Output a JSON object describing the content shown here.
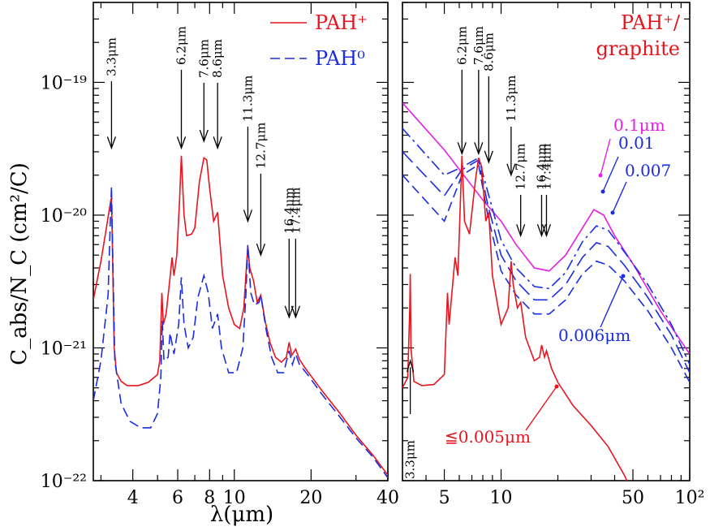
{
  "chart_data": [
    {
      "type": "line",
      "panel": "left",
      "xlabel": "λ(μm)",
      "ylabel": "C_abs/N_C (cm²/C)",
      "xscale": "log",
      "yscale": "log",
      "xlim": [
        2.8,
        40
      ],
      "ylim": [
        1e-22,
        4e-19
      ],
      "xtick_values": [
        4,
        6,
        8,
        10,
        20,
        40
      ],
      "xtick_labels": [
        "4",
        "6",
        "8",
        "10",
        "20",
        "40"
      ],
      "ytick_values": [
        1e-22,
        1e-21,
        1e-20,
        1e-19
      ],
      "ytick_labels": [
        "10⁻²²",
        "10⁻²¹",
        "10⁻²⁰",
        "10⁻¹⁹"
      ],
      "legend_position": "top-right",
      "legend": [
        {
          "label": "PAH⁺",
          "color": "#e8141e",
          "dash": "solid"
        },
        {
          "label": "PAH⁰",
          "color": "#1a2de0",
          "dash": "dashed"
        }
      ],
      "features": [
        {
          "label": "3.3μm",
          "x": 3.3,
          "arrow_tip_y": 3.2e-20
        },
        {
          "label": "6.2μm",
          "x": 6.2,
          "arrow_tip_y": 3.2e-20
        },
        {
          "label": "7.6μm",
          "x": 7.6,
          "arrow_tip_y": 3.6e-20
        },
        {
          "label": "8.6μm",
          "x": 8.6,
          "arrow_tip_y": 3.2e-20
        },
        {
          "label": "11.3μm",
          "x": 11.3,
          "arrow_tip_y": 9e-21
        },
        {
          "label": "12.7μm",
          "x": 12.7,
          "arrow_tip_y": 5e-21
        },
        {
          "label": "16.4μm",
          "x": 16.4,
          "arrow_tip_y": 1.7e-21
        },
        {
          "label": "17.4μm",
          "x": 17.4,
          "arrow_tip_y": 1.7e-21
        }
      ],
      "series": [
        {
          "name": "PAH⁺",
          "color": "#e8141e",
          "dash": "solid",
          "points": [
            [
              2.8,
              2.3e-21
            ],
            [
              3.0,
              4.5e-21
            ],
            [
              3.15,
              8e-21
            ],
            [
              3.28,
              1.3e-20
            ],
            [
              3.3,
              1.35e-20
            ],
            [
              3.33,
              5e-21
            ],
            [
              3.38,
              1e-21
            ],
            [
              3.45,
              6.5e-22
            ],
            [
              3.6,
              5.6e-22
            ],
            [
              3.8,
              5.2e-22
            ],
            [
              4.2,
              5.2e-22
            ],
            [
              4.6,
              5.5e-22
            ],
            [
              5.0,
              6.3e-22
            ],
            [
              5.1,
              8e-22
            ],
            [
              5.2,
              2.6e-21
            ],
            [
              5.27,
              1.5e-21
            ],
            [
              5.4,
              1.8e-21
            ],
            [
              5.6,
              3.4e-21
            ],
            [
              5.7,
              4.8e-21
            ],
            [
              5.8,
              3.5e-21
            ],
            [
              5.95,
              5e-21
            ],
            [
              6.1,
              1.3e-20
            ],
            [
              6.2,
              2.8e-20
            ],
            [
              6.35,
              1e-20
            ],
            [
              6.5,
              7e-21
            ],
            [
              6.8,
              7.2e-21
            ],
            [
              7.0,
              8e-21
            ],
            [
              7.3,
              1.8e-20
            ],
            [
              7.6,
              2.7e-20
            ],
            [
              7.8,
              2.6e-20
            ],
            [
              8.0,
              1.6e-20
            ],
            [
              8.3,
              9e-21
            ],
            [
              8.6,
              1.05e-20
            ],
            [
              8.8,
              6e-21
            ],
            [
              9.0,
              3.5e-21
            ],
            [
              9.5,
              2e-21
            ],
            [
              10.0,
              1.5e-21
            ],
            [
              10.5,
              1.4e-21
            ],
            [
              10.9,
              2e-21
            ],
            [
              11.1,
              3.5e-21
            ],
            [
              11.3,
              5.8e-21
            ],
            [
              11.5,
              4e-21
            ],
            [
              11.9,
              3.2e-21
            ],
            [
              12.3,
              2.2e-21
            ],
            [
              12.7,
              2.5e-21
            ],
            [
              13.2,
              1.6e-21
            ],
            [
              13.8,
              1.1e-21
            ],
            [
              14.5,
              8.5e-22
            ],
            [
              15.3,
              7.8e-22
            ],
            [
              16.0,
              8.5e-22
            ],
            [
              16.4,
              1.1e-21
            ],
            [
              16.8,
              8.8e-22
            ],
            [
              17.4,
              9.8e-22
            ],
            [
              18.0,
              8.2e-22
            ],
            [
              19.0,
              7e-22
            ],
            [
              22,
              4.8e-22
            ],
            [
              26,
              3.2e-22
            ],
            [
              30,
              2.2e-22
            ],
            [
              35,
              1.55e-22
            ],
            [
              40,
              1.1e-22
            ]
          ]
        },
        {
          "name": "PAH⁰",
          "color": "#1a2de0",
          "dash": "dashed",
          "points": [
            [
              2.8,
              4e-22
            ],
            [
              3.0,
              8e-22
            ],
            [
              3.2,
              2.5e-21
            ],
            [
              3.27,
              1e-20
            ],
            [
              3.3,
              1.65e-20
            ],
            [
              3.33,
              6e-21
            ],
            [
              3.4,
              8e-22
            ],
            [
              3.6,
              3.8e-22
            ],
            [
              3.9,
              2.8e-22
            ],
            [
              4.3,
              2.5e-22
            ],
            [
              4.7,
              2.5e-22
            ],
            [
              5.0,
              3.2e-22
            ],
            [
              5.15,
              6e-22
            ],
            [
              5.22,
              1.6e-21
            ],
            [
              5.3,
              8e-22
            ],
            [
              5.5,
              8.5e-22
            ],
            [
              5.6,
              1.3e-21
            ],
            [
              5.8,
              9e-22
            ],
            [
              6.05,
              1.5e-21
            ],
            [
              6.2,
              3.4e-21
            ],
            [
              6.35,
              1.5e-21
            ],
            [
              6.6,
              1e-21
            ],
            [
              6.9,
              1.2e-21
            ],
            [
              7.2,
              2.4e-21
            ],
            [
              7.6,
              3.5e-21
            ],
            [
              7.9,
              2.6e-21
            ],
            [
              8.2,
              1.4e-21
            ],
            [
              8.6,
              1.8e-21
            ],
            [
              8.9,
              1e-21
            ],
            [
              9.5,
              6.5e-22
            ],
            [
              10.2,
              6.5e-22
            ],
            [
              10.8,
              1e-21
            ],
            [
              11.1,
              2.5e-21
            ],
            [
              11.3,
              6e-21
            ],
            [
              11.6,
              2.6e-21
            ],
            [
              12.0,
              2.1e-21
            ],
            [
              12.5,
              2.2e-21
            ],
            [
              12.7,
              2.5e-21
            ],
            [
              13.3,
              1.4e-21
            ],
            [
              14.0,
              8.5e-22
            ],
            [
              14.8,
              6.5e-22
            ],
            [
              15.6,
              6.5e-22
            ],
            [
              16.4,
              9.5e-22
            ],
            [
              16.9,
              7.5e-22
            ],
            [
              17.4,
              9e-22
            ],
            [
              18.0,
              7.5e-22
            ],
            [
              19.5,
              6.2e-22
            ],
            [
              22,
              4.5e-22
            ],
            [
              26,
              3e-22
            ],
            [
              30,
              2.1e-22
            ],
            [
              35,
              1.5e-22
            ],
            [
              40,
              1.05e-22
            ]
          ]
        }
      ]
    },
    {
      "type": "line",
      "panel": "right",
      "title": "PAH⁺/ graphite",
      "xscale": "log",
      "yscale": "log",
      "xlim": [
        3,
        100
      ],
      "ylim": [
        1e-22,
        4e-19
      ],
      "xtick_values": [
        5,
        10,
        50,
        100
      ],
      "xtick_labels": [
        "5",
        "10",
        "50",
        "10²"
      ],
      "features": [
        {
          "label": "3.3μm",
          "x": 3.3,
          "arrow_tip_y": 8e-22
        },
        {
          "label": "6.2μm",
          "x": 6.2,
          "arrow_tip_y": 2.9e-20
        },
        {
          "label": "7.6μm",
          "x": 7.6,
          "arrow_tip_y": 2.9e-20
        },
        {
          "label": "8.6μm",
          "x": 8.6,
          "arrow_tip_y": 2.5e-20
        },
        {
          "label": "11.3μm",
          "x": 11.3,
          "arrow_tip_y": 2e-20
        },
        {
          "label": "12.7μm",
          "x": 12.7,
          "arrow_tip_y": 7e-21
        },
        {
          "label": "16.4μm",
          "x": 16.4,
          "arrow_tip_y": 7e-21
        },
        {
          "label": "17.4μm",
          "x": 17.4,
          "arrow_tip_y": 7e-21
        }
      ],
      "series": [
        {
          "name": "0.1μm",
          "color": "#e61ee6",
          "dash": "solid",
          "points": [
            [
              3,
              7e-20
            ],
            [
              5,
              3.1e-20
            ],
            [
              8,
              1.3e-20
            ],
            [
              10,
              9e-21
            ],
            [
              12,
              6e-21
            ],
            [
              15,
              4e-21
            ],
            [
              18,
              3.8e-21
            ],
            [
              22,
              5e-21
            ],
            [
              27,
              8e-21
            ],
            [
              31,
              1.1e-20
            ],
            [
              35,
              1e-20
            ],
            [
              40,
              7e-21
            ],
            [
              50,
              4.3e-21
            ],
            [
              70,
              1.9e-21
            ],
            [
              100,
              9e-22
            ]
          ]
        },
        {
          "name": "0.01",
          "color": "#1a2de0",
          "dash": "dashdot",
          "points": [
            [
              3,
              4.5e-20
            ],
            [
              5,
              2e-20
            ],
            [
              6.2,
              2.3e-20
            ],
            [
              7.6,
              2.7e-20
            ],
            [
              8.5,
              1.5e-20
            ],
            [
              10,
              6.5e-21
            ],
            [
              12,
              4e-21
            ],
            [
              15,
              2.9e-21
            ],
            [
              18,
              2.8e-21
            ],
            [
              22,
              3.7e-21
            ],
            [
              27,
              6.3e-21
            ],
            [
              32,
              8.3e-21
            ],
            [
              37,
              7.7e-21
            ],
            [
              45,
              5.3e-21
            ],
            [
              60,
              3e-21
            ],
            [
              80,
              1.5e-21
            ],
            [
              100,
              7.5e-22
            ]
          ]
        },
        {
          "name": "0.007",
          "color": "#1a2de0",
          "dash": "longdash",
          "points": [
            [
              3,
              3e-20
            ],
            [
              5,
              1.4e-20
            ],
            [
              6.2,
              2.2e-20
            ],
            [
              7.6,
              2.6e-20
            ],
            [
              8.5,
              1.2e-20
            ],
            [
              10,
              5e-21
            ],
            [
              12,
              3.2e-21
            ],
            [
              15,
              2.3e-21
            ],
            [
              18,
              2.3e-21
            ],
            [
              22,
              3e-21
            ],
            [
              27,
              4.8e-21
            ],
            [
              32,
              6.2e-21
            ],
            [
              37,
              5.8e-21
            ],
            [
              45,
              4.2e-21
            ],
            [
              60,
              2.4e-21
            ],
            [
              80,
              1.25e-21
            ],
            [
              100,
              6.5e-22
            ]
          ]
        },
        {
          "name": "0.006μm",
          "color": "#1a2de0",
          "dash": "dashed",
          "points": [
            [
              3,
              2e-20
            ],
            [
              5,
              9e-21
            ],
            [
              6.2,
              2e-20
            ],
            [
              7.6,
              2.4e-20
            ],
            [
              8.5,
              1e-20
            ],
            [
              10,
              3.8e-21
            ],
            [
              12,
              2.5e-21
            ],
            [
              15,
              1.8e-21
            ],
            [
              18,
              1.8e-21
            ],
            [
              22,
              2.3e-21
            ],
            [
              27,
              3.6e-21
            ],
            [
              32,
              4.5e-21
            ],
            [
              37,
              4.2e-21
            ],
            [
              45,
              3.2e-21
            ],
            [
              60,
              1.9e-21
            ],
            [
              80,
              1e-21
            ],
            [
              100,
              5.5e-22
            ]
          ]
        },
        {
          "name": "≦0.005μm",
          "color": "#e8141e",
          "dash": "solid",
          "points": [
            [
              3,
              5e-22
            ],
            [
              3.2,
              6e-22
            ],
            [
              3.28,
              2e-21
            ],
            [
              3.3,
              3.6e-21
            ],
            [
              3.33,
              1e-21
            ],
            [
              3.45,
              5.6e-22
            ],
            [
              3.8,
              5.2e-22
            ],
            [
              4.4,
              5.3e-22
            ],
            [
              5.0,
              6.3e-22
            ],
            [
              5.2,
              2.6e-21
            ],
            [
              5.3,
              1.5e-21
            ],
            [
              5.7,
              4.8e-21
            ],
            [
              5.9,
              3.5e-21
            ],
            [
              6.2,
              2.8e-20
            ],
            [
              6.4,
              9e-21
            ],
            [
              6.8,
              7.2e-21
            ],
            [
              7.3,
              1.8e-20
            ],
            [
              7.6,
              2.7e-20
            ],
            [
              7.9,
              2.3e-20
            ],
            [
              8.3,
              9e-21
            ],
            [
              8.6,
              1.05e-20
            ],
            [
              9.0,
              3.5e-21
            ],
            [
              10,
              1.5e-21
            ],
            [
              10.9,
              2e-21
            ],
            [
              11.3,
              4.5e-21
            ],
            [
              11.6,
              3e-21
            ],
            [
              12.2,
              2e-21
            ],
            [
              12.7,
              2.2e-21
            ],
            [
              13.5,
              1.2e-21
            ],
            [
              15,
              8e-22
            ],
            [
              16,
              8.5e-22
            ],
            [
              16.4,
              1.05e-21
            ],
            [
              17,
              8.5e-22
            ],
            [
              17.4,
              9.5e-22
            ],
            [
              18.5,
              7e-22
            ],
            [
              20,
              5.5e-22
            ],
            [
              24,
              3.7e-22
            ],
            [
              30,
              2.6e-22
            ],
            [
              37,
              1.8e-22
            ],
            [
              45,
              1.1e-22
            ],
            [
              50,
              8e-23
            ]
          ]
        }
      ]
    }
  ]
}
